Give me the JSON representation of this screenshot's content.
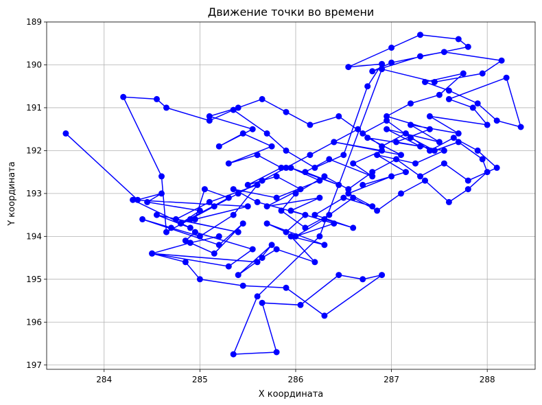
{
  "chart_data": {
    "type": "line",
    "title": "Движение точки во времени",
    "xlabel": "X координата",
    "ylabel": "Y координата",
    "xlim": [
      283.4,
      288.5
    ],
    "ylim": [
      189.0,
      197.1
    ],
    "y_inverted": true,
    "grid": true,
    "xticks": [
      284,
      285,
      286,
      287,
      288
    ],
    "yticks": [
      189,
      190,
      191,
      192,
      193,
      194,
      195,
      196,
      197
    ],
    "color": "#0000ff",
    "marker": "circle",
    "series": [
      {
        "x": [
          283.6,
          284.35,
          284.6,
          284.45,
          285.0,
          284.8,
          285.3,
          285.05,
          284.95,
          285.5,
          284.3,
          284.9,
          284.55,
          285.4,
          284.75,
          285.1,
          285.6,
          285.35,
          285.0,
          284.7,
          284.4,
          285.2,
          285.45,
          285.15,
          284.85,
          284.95,
          285.55,
          285.3,
          284.5,
          285.6,
          285.75,
          285.4,
          285.65,
          285.8,
          286.2,
          285.95,
          286.3,
          285.7,
          285.9,
          286.1,
          285.6,
          285.35,
          285.8,
          286.25,
          285.95,
          286.45,
          286.1,
          286.35,
          286.8,
          286.6,
          286.9,
          286.4,
          287.1,
          286.75,
          287.3,
          286.95,
          287.5,
          287.2,
          287.7,
          287.4,
          288.0,
          287.85,
          287.6,
          288.2,
          288.35,
          288.1,
          287.9,
          287.6,
          287.35,
          287.75,
          287.5,
          287.2,
          286.95,
          287.4,
          287.05,
          287.55,
          287.25,
          286.85,
          287.15,
          286.7,
          287.0,
          286.55,
          286.8,
          286.5,
          286.2,
          286.6,
          286.3,
          286.0,
          286.4,
          285.95,
          286.25,
          285.7,
          286.05,
          285.8,
          285.5,
          285.85,
          285.6,
          285.3,
          285.75,
          285.45,
          285.2,
          285.55,
          285.1,
          285.4,
          285.65,
          285.9,
          286.15,
          286.45,
          286.7,
          286.95,
          287.2,
          287.45,
          287.7,
          287.95,
          288.0,
          287.8,
          287.6,
          287.35,
          287.1,
          286.85,
          286.6,
          286.35,
          286.1,
          285.85,
          286.0,
          286.3,
          286.55,
          286.8,
          287.05,
          287.3,
          287.55,
          287.8,
          288.1,
          287.9,
          287.65,
          287.4,
          287.15,
          286.9,
          286.65,
          286.4,
          286.15,
          285.9,
          285.65,
          285.4,
          285.15,
          284.9,
          284.65,
          284.6,
          284.2,
          284.55,
          284.65,
          285.1,
          285.35,
          285.7,
          285.9,
          286.2,
          286.5,
          286.75,
          286.9,
          286.55,
          287.0,
          287.3,
          287.7,
          287.8,
          287.0,
          286.8,
          287.3,
          287.55,
          288.15,
          287.95,
          287.45,
          286.9,
          286.25,
          285.6,
          285.35,
          285.8,
          285.65,
          286.05,
          286.45,
          286.7,
          286.9,
          286.3,
          285.9,
          285.45,
          285.0,
          284.85,
          284.5,
          284.9,
          285.2
        ],
        "y": [
          191.6,
          193.15,
          193.0,
          193.2,
          193.4,
          193.7,
          193.1,
          192.9,
          193.6,
          193.3,
          193.15,
          193.8,
          193.5,
          193.9,
          193.6,
          193.2,
          192.8,
          193.5,
          194.0,
          193.8,
          193.6,
          194.2,
          193.7,
          194.4,
          194.1,
          193.9,
          194.3,
          194.7,
          194.4,
          194.6,
          194.2,
          194.9,
          194.5,
          194.3,
          194.6,
          194.0,
          194.2,
          193.7,
          193.9,
          193.5,
          193.2,
          192.9,
          193.1,
          192.7,
          192.4,
          192.8,
          192.5,
          192.2,
          192.6,
          192.3,
          192.0,
          191.8,
          192.1,
          191.7,
          191.9,
          191.5,
          191.8,
          191.4,
          191.6,
          191.2,
          191.4,
          191.0,
          190.8,
          190.3,
          191.45,
          191.3,
          190.9,
          190.6,
          190.4,
          190.2,
          190.7,
          190.9,
          191.2,
          191.5,
          191.8,
          192.0,
          192.3,
          192.1,
          192.5,
          192.8,
          192.6,
          193.0,
          193.3,
          193.1,
          193.5,
          193.8,
          193.6,
          194.0,
          193.7,
          193.4,
          193.1,
          193.3,
          192.9,
          192.6,
          192.8,
          192.4,
          192.1,
          192.3,
          191.9,
          191.6,
          191.9,
          191.5,
          191.2,
          191.0,
          190.8,
          191.1,
          191.4,
          191.2,
          191.6,
          191.3,
          191.7,
          192.0,
          191.8,
          192.2,
          192.5,
          192.9,
          193.2,
          192.7,
          193.0,
          193.4,
          193.1,
          193.5,
          193.8,
          193.4,
          193.0,
          192.6,
          192.9,
          192.5,
          192.2,
          192.6,
          192.3,
          192.7,
          192.4,
          192.0,
          191.7,
          192.0,
          191.6,
          191.9,
          191.5,
          191.8,
          192.1,
          192.4,
          192.7,
          193.0,
          193.3,
          193.6,
          193.9,
          192.6,
          190.75,
          190.8,
          191.0,
          191.3,
          191.05,
          191.6,
          192.0,
          192.4,
          192.1,
          190.5,
          189.98,
          190.05,
          189.6,
          189.3,
          189.4,
          189.58,
          189.95,
          190.15,
          189.8,
          189.7,
          189.9,
          190.2,
          190.4,
          190.1,
          194.0,
          195.4,
          196.75,
          196.7,
          195.55,
          195.6,
          194.9,
          195.0,
          194.9,
          195.85,
          195.2,
          195.15,
          195.0,
          194.6,
          194.4,
          194.15,
          194.0
        ]
      }
    ]
  }
}
